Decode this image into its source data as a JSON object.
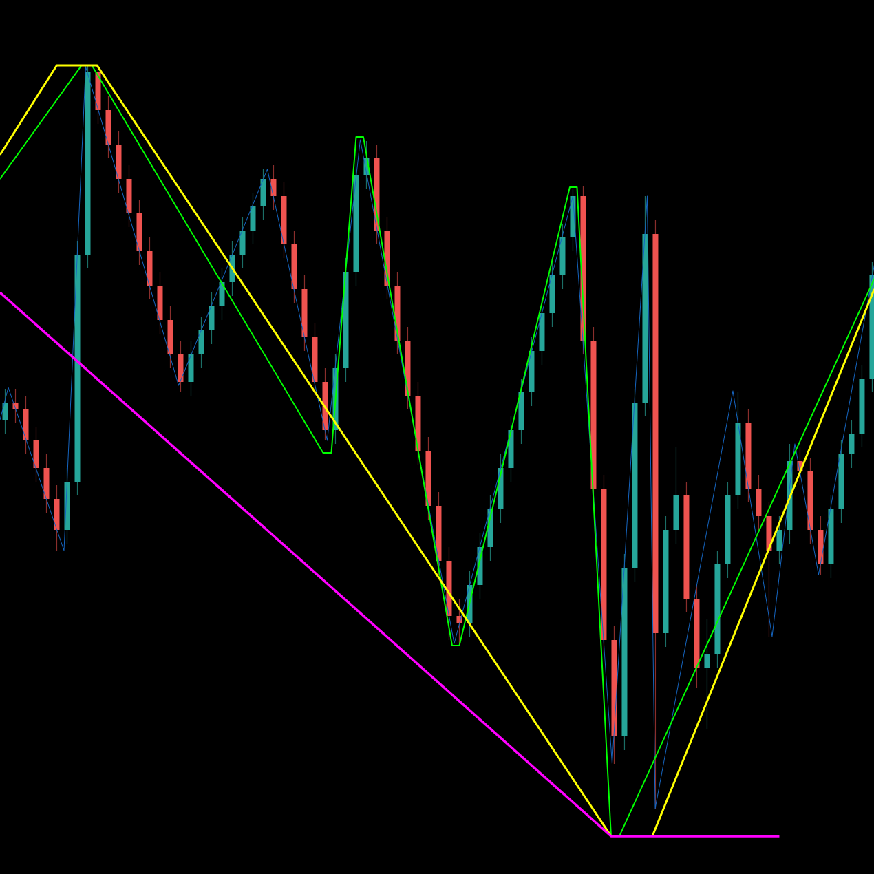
{
  "chart_data": {
    "type": "candlestick",
    "title": "",
    "xlabel": "",
    "ylabel": "",
    "xlim": [
      -0.5,
      84.17
    ],
    "ylim": [
      0,
      127
    ],
    "grid": false,
    "colors": {
      "background": "#000000",
      "bull": "#26a69a",
      "bear": "#ef5350",
      "bull_wick": "#1b6e66",
      "bear_wick": "#8a2e2c",
      "zigzag_thin": "#1565c0",
      "zigzag_green": "#00ff00",
      "zigzag_yellow": "#ffff00",
      "zigzag_magenta": "#ff00ff"
    },
    "candles": [
      [
        66,
        70.5,
        64,
        68.5
      ],
      [
        68.5,
        70.5,
        65.5,
        67.5
      ],
      [
        67.5,
        69.5,
        61,
        63
      ],
      [
        63,
        65,
        57,
        59
      ],
      [
        59,
        61,
        52.5,
        54.5
      ],
      [
        54.5,
        56.5,
        47,
        50
      ],
      [
        50,
        59,
        48,
        57
      ],
      [
        57,
        92,
        55,
        90
      ],
      [
        90,
        117.5,
        88,
        116.5
      ],
      [
        116.5,
        117,
        109,
        111
      ],
      [
        111,
        113,
        104,
        106
      ],
      [
        106,
        108,
        99,
        101
      ],
      [
        101,
        103,
        94,
        96
      ],
      [
        96,
        98,
        88.5,
        90.5
      ],
      [
        90.5,
        92.5,
        83.5,
        85.5
      ],
      [
        85.5,
        87.5,
        78.5,
        80.5
      ],
      [
        80.5,
        82.5,
        73.5,
        75.5
      ],
      [
        75.5,
        77.5,
        70,
        71.5
      ],
      [
        71.5,
        77.5,
        69.5,
        75.5
      ],
      [
        75.5,
        81,
        73.5,
        79
      ],
      [
        79,
        84.5,
        77,
        82.5
      ],
      [
        82.5,
        88,
        80.5,
        86
      ],
      [
        86,
        92,
        84,
        90
      ],
      [
        90,
        95.5,
        88,
        93.5
      ],
      [
        93.5,
        99,
        91.5,
        97
      ],
      [
        97,
        102.5,
        95,
        101
      ],
      [
        101,
        103,
        96.5,
        98.5
      ],
      [
        98.5,
        100.5,
        89.5,
        91.5
      ],
      [
        91.5,
        93.5,
        83,
        85
      ],
      [
        85,
        87,
        76,
        78
      ],
      [
        78,
        80,
        69.5,
        71.5
      ],
      [
        71.5,
        73.5,
        63,
        64.5
      ],
      [
        64.5,
        75.5,
        62.5,
        73.5
      ],
      [
        73.5,
        89.5,
        71.5,
        87.5
      ],
      [
        87.5,
        106,
        85.5,
        101.5
      ],
      [
        101.5,
        106.5,
        99.5,
        104
      ],
      [
        104,
        106,
        91.5,
        93.5
      ],
      [
        93.5,
        95.5,
        83.5,
        85.5
      ],
      [
        85.5,
        87.5,
        75.5,
        77.5
      ],
      [
        77.5,
        79.5,
        67.5,
        69.5
      ],
      [
        69.5,
        71.5,
        59.5,
        61.5
      ],
      [
        61.5,
        63.5,
        51.5,
        53.5
      ],
      [
        53.5,
        55.5,
        43.5,
        45.5
      ],
      [
        45.5,
        47.5,
        34,
        37.5
      ],
      [
        37.5,
        40,
        33.5,
        36.5
      ],
      [
        36.5,
        44,
        34.5,
        42
      ],
      [
        42,
        49.5,
        40,
        47.5
      ],
      [
        47.5,
        55,
        45.5,
        53
      ],
      [
        53,
        61,
        51,
        59
      ],
      [
        59,
        66.5,
        57,
        64.5
      ],
      [
        64.5,
        72,
        62.5,
        70
      ],
      [
        70,
        78,
        68,
        76
      ],
      [
        76,
        83.5,
        74,
        81.5
      ],
      [
        81.5,
        89,
        79.5,
        87
      ],
      [
        87,
        94.5,
        85,
        92.5
      ],
      [
        92.5,
        99.5,
        90.5,
        98.5
      ],
      [
        98.5,
        100,
        75.5,
        77.5
      ],
      [
        77.5,
        79.5,
        54,
        56
      ],
      [
        56,
        58,
        32,
        34
      ],
      [
        34,
        36,
        16,
        20
      ],
      [
        20,
        46.5,
        18,
        44.5
      ],
      [
        44.5,
        70.5,
        42.5,
        68.5
      ],
      [
        68.5,
        98.5,
        66.5,
        93
      ],
      [
        93,
        95,
        9.5,
        35
      ],
      [
        35,
        52,
        33,
        50
      ],
      [
        50,
        62,
        48,
        55
      ],
      [
        55,
        57,
        38,
        40
      ],
      [
        40,
        42,
        27,
        30
      ],
      [
        30,
        37,
        21,
        32
      ],
      [
        32,
        47,
        30,
        45
      ],
      [
        45,
        57,
        43,
        55
      ],
      [
        55,
        70,
        53,
        65.5
      ],
      [
        65.5,
        67.5,
        54,
        56
      ],
      [
        56,
        58,
        50,
        52
      ],
      [
        52,
        54,
        34.5,
        47
      ],
      [
        47,
        52,
        45,
        50
      ],
      [
        50,
        62.5,
        48,
        60
      ],
      [
        60,
        62,
        56.5,
        58.5
      ],
      [
        58.5,
        60.5,
        48,
        50
      ],
      [
        50,
        52,
        43.5,
        45
      ],
      [
        45,
        55,
        43,
        53
      ],
      [
        53,
        63,
        51,
        61
      ],
      [
        61,
        66,
        59,
        64
      ],
      [
        64,
        74,
        62,
        72
      ],
      [
        72,
        89,
        70,
        87
      ]
    ],
    "overlays": [
      {
        "style": "thin-blue",
        "points": [
          [
            -0.5,
            66
          ],
          [
            0.3,
            70.7
          ],
          [
            5.7,
            47
          ],
          [
            7.8,
            117.3
          ],
          [
            16.8,
            71
          ],
          [
            25.4,
            102.4
          ],
          [
            31.2,
            63
          ],
          [
            34.4,
            106.7
          ],
          [
            43.5,
            33.5
          ],
          [
            55.0,
            98.5
          ],
          [
            58.8,
            16
          ],
          [
            62.2,
            98.5
          ],
          [
            62.97,
            9.5
          ],
          [
            70.5,
            70.2
          ],
          [
            74.3,
            34.5
          ],
          [
            76.5,
            62.5
          ],
          [
            78.8,
            43.5
          ],
          [
            84.2,
            88.5
          ]
        ]
      },
      {
        "style": "green",
        "points": [
          [
            -0.5,
            101
          ],
          [
            7.4,
            117.5
          ],
          [
            8.4,
            117.5
          ],
          [
            30.8,
            61.2
          ],
          [
            31.6,
            61.2
          ],
          [
            34.0,
            107.1
          ],
          [
            34.7,
            107.1
          ],
          [
            43.3,
            33.2
          ],
          [
            44.0,
            33.2
          ],
          [
            54.7,
            99.8
          ],
          [
            55.4,
            99.8
          ],
          [
            58.7,
            5.5
          ],
          [
            59.5,
            5.5
          ],
          [
            84.2,
            86.5
          ]
        ]
      },
      {
        "style": "yellow",
        "points": [
          [
            -0.5,
            104.5
          ],
          [
            5.0,
            117.5
          ],
          [
            8.9,
            117.5
          ],
          [
            58.7,
            5.5
          ]
        ]
      },
      {
        "style": "yellow",
        "points": [
          [
            62.7,
            5.5
          ],
          [
            84.2,
            85
          ]
        ]
      },
      {
        "style": "magenta",
        "points": [
          [
            -0.5,
            84.5
          ],
          [
            58.7,
            5.5
          ],
          [
            75.0,
            5.5
          ]
        ]
      }
    ]
  }
}
